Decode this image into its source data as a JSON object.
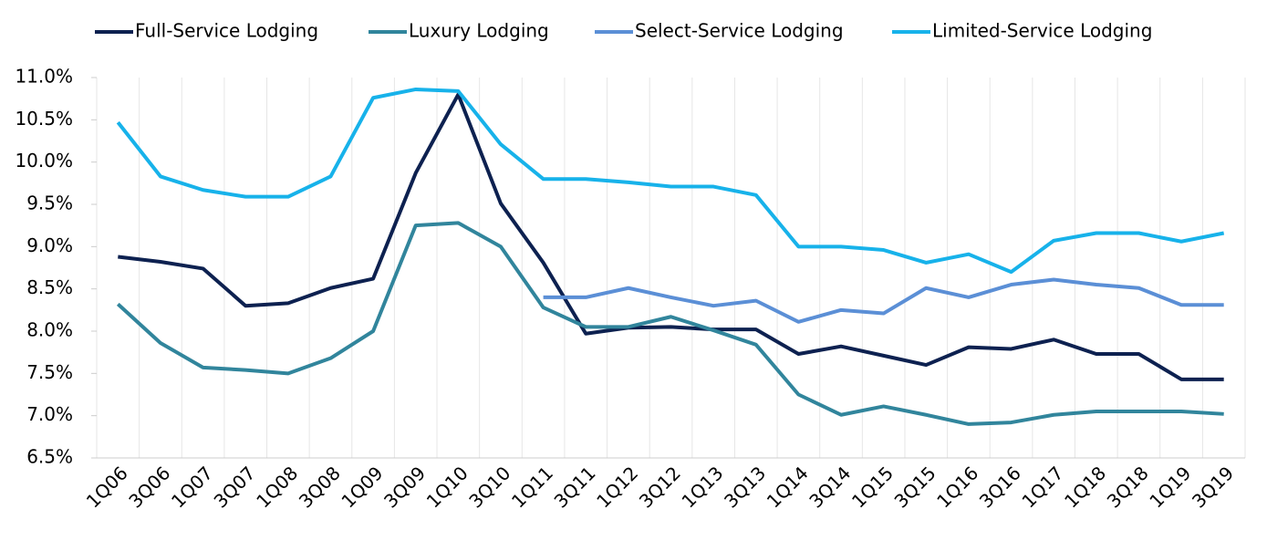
{
  "chart_data": {
    "type": "line",
    "categories": [
      "1Q06",
      "3Q06",
      "1Q07",
      "3Q07",
      "1Q08",
      "3Q08",
      "1Q09",
      "3Q09",
      "1Q10",
      "3Q10",
      "1Q11",
      "3Q11",
      "1Q12",
      "3Q12",
      "1Q13",
      "3Q13",
      "1Q14",
      "3Q14",
      "1Q15",
      "3Q15",
      "1Q16",
      "3Q16",
      "1Q17",
      "1Q18",
      "3Q18",
      "1Q19",
      "3Q19"
    ],
    "series": [
      {
        "name": "Full-Service Lodging",
        "color": "#0d2150",
        "values": [
          8.88,
          8.82,
          8.74,
          8.3,
          8.33,
          8.51,
          8.62,
          9.87,
          10.8,
          9.51,
          8.81,
          7.97,
          8.04,
          8.05,
          8.02,
          8.02,
          7.73,
          7.82,
          7.71,
          7.6,
          7.81,
          7.79,
          7.9,
          7.73,
          7.73,
          7.43,
          7.43
        ]
      },
      {
        "name": "Luxury Lodging",
        "color": "#31859c",
        "values": [
          8.32,
          7.86,
          7.57,
          7.54,
          7.5,
          7.68,
          8.0,
          9.25,
          9.28,
          9.0,
          8.28,
          8.05,
          8.05,
          8.17,
          8.01,
          7.84,
          7.25,
          7.01,
          7.11,
          7.01,
          6.9,
          6.92,
          7.01,
          7.05,
          7.05,
          7.05,
          7.02
        ]
      },
      {
        "name": "Select-Service Lodging",
        "color": "#5b8fd6",
        "values": [
          null,
          null,
          null,
          null,
          null,
          null,
          null,
          null,
          null,
          null,
          8.4,
          8.4,
          8.51,
          8.4,
          8.3,
          8.36,
          8.11,
          8.25,
          8.21,
          8.51,
          8.4,
          8.55,
          8.61,
          8.55,
          8.51,
          8.31,
          8.31
        ]
      },
      {
        "name": "Limited-Service Lodging",
        "color": "#17b2ea",
        "values": [
          10.47,
          9.83,
          9.67,
          9.59,
          9.59,
          9.83,
          10.76,
          10.86,
          10.84,
          10.21,
          9.8,
          9.8,
          9.76,
          9.71,
          9.71,
          9.61,
          9.0,
          9.0,
          8.96,
          8.81,
          8.91,
          8.7,
          9.07,
          9.16,
          9.16,
          9.06,
          9.16
        ]
      }
    ],
    "ylim": [
      6.5,
      11
    ],
    "yticks": [
      {
        "value": 6.5,
        "label": "6.5%"
      },
      {
        "value": 7,
        "label": "7.0%"
      },
      {
        "value": 7.5,
        "label": "7.5%"
      },
      {
        "value": 8,
        "label": "8.0%"
      },
      {
        "value": 8.5,
        "label": "8.5%"
      },
      {
        "value": 9,
        "label": "9.0%"
      },
      {
        "value": 9.5,
        "label": "9.5%"
      },
      {
        "value": 10,
        "label": "10.0%"
      },
      {
        "value": 10.5,
        "label": "10.5%"
      },
      {
        "value": 11,
        "label": "11.0%"
      }
    ],
    "grid": true
  }
}
